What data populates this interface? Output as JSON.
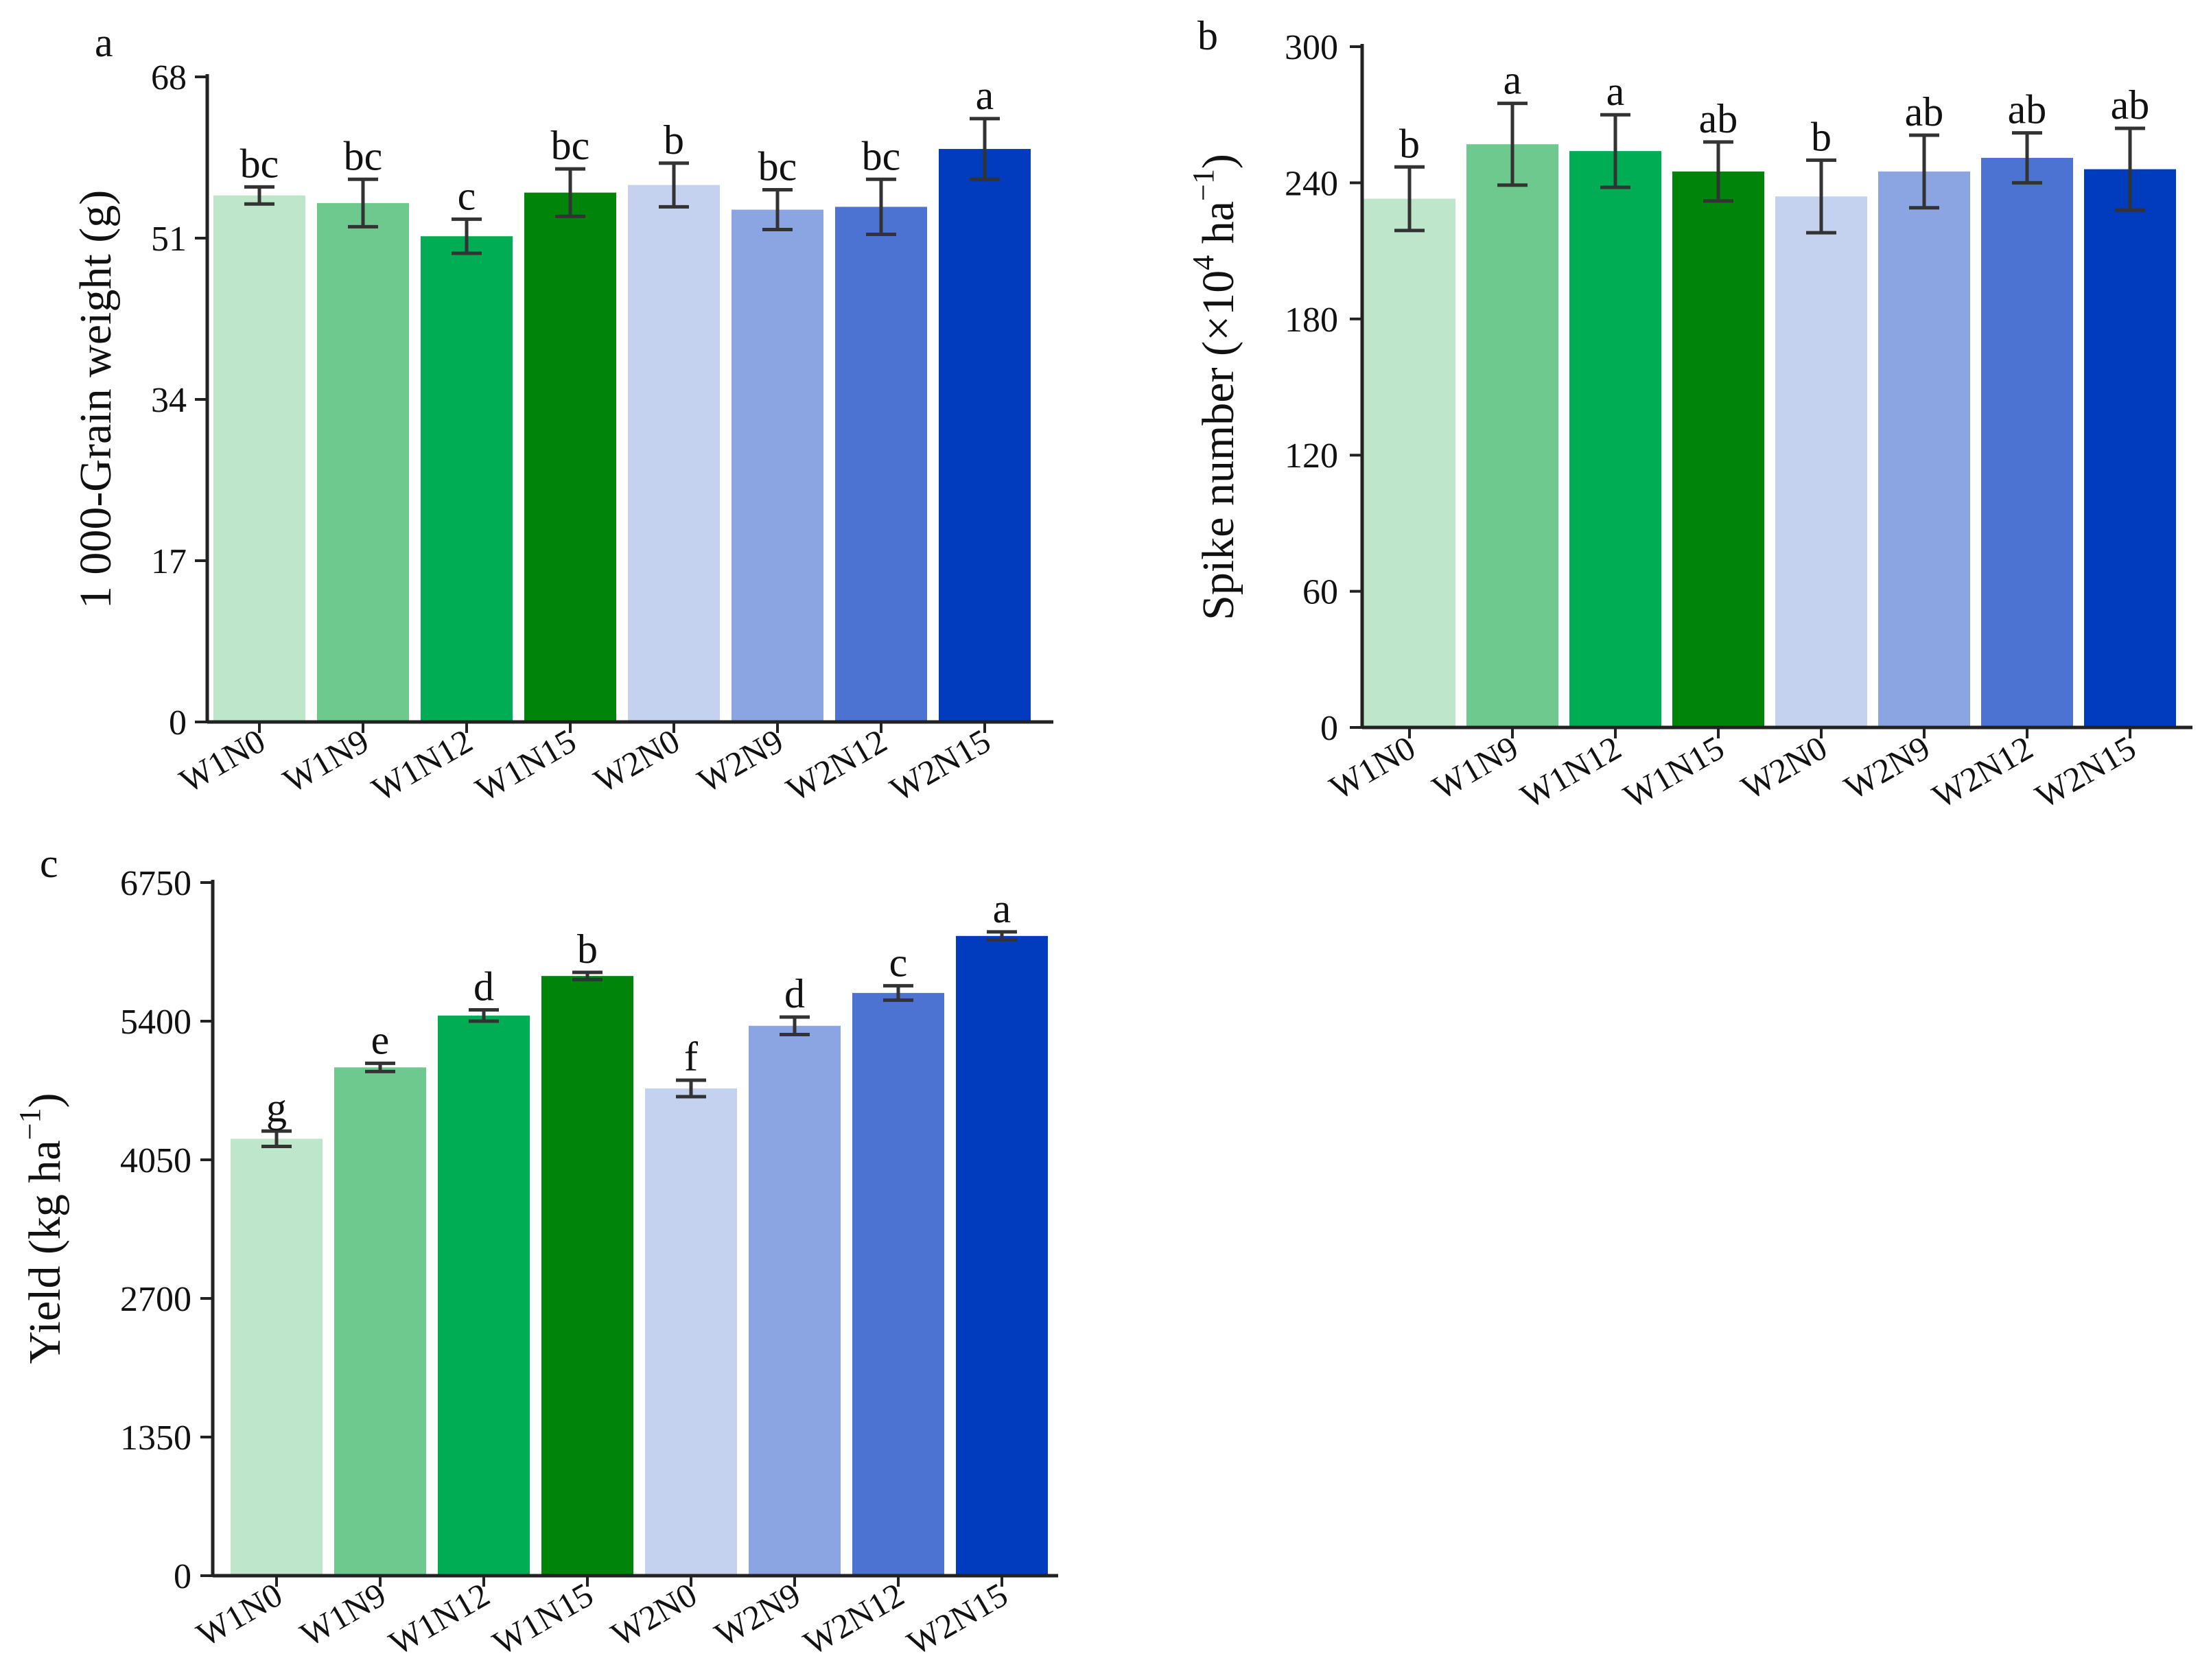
{
  "chart_data": [
    {
      "panel": "a",
      "type": "bar",
      "categories": [
        "W1N0",
        "W1N9",
        "W1N12",
        "W1N15",
        "W2N0",
        "W2N9",
        "W2N12",
        "W2N15"
      ],
      "values": [
        55.5,
        54.7,
        51.2,
        55.8,
        56.6,
        54.0,
        54.3,
        60.4
      ],
      "errors": [
        0.9,
        2.5,
        1.8,
        2.5,
        2.3,
        2.1,
        2.9,
        3.2
      ],
      "significance": [
        "bc",
        "bc",
        "c",
        "bc",
        "b",
        "bc",
        "bc",
        "a"
      ],
      "colors": [
        "#bde6cb",
        "#6dc98d",
        "#00ad54",
        "#00840a",
        "#c4d2f0",
        "#8ba5e2",
        "#4c72d2",
        "#003cbd"
      ],
      "ylabel": "1 000-Grain weight (g)",
      "ylabel_parts": [
        {
          "text": "1 000-Grain weight (g)"
        }
      ],
      "yticks": [
        0,
        17,
        34,
        51,
        68
      ],
      "ylim": [
        0,
        68
      ],
      "xlabel": "",
      "title": ""
    },
    {
      "panel": "b",
      "type": "bar",
      "categories": [
        "W1N0",
        "W1N9",
        "W1N12",
        "W1N15",
        "W2N0",
        "W2N9",
        "W2N12",
        "W2N15"
      ],
      "values": [
        233,
        257,
        254,
        245,
        234,
        245,
        251,
        246
      ],
      "errors": [
        14,
        18,
        16,
        13,
        16,
        16,
        11,
        18
      ],
      "significance": [
        "b",
        "a",
        "a",
        "ab",
        "b",
        "ab",
        "ab",
        "ab"
      ],
      "colors": [
        "#bde6cb",
        "#6dc98d",
        "#00ad54",
        "#00840a",
        "#c4d2f0",
        "#8ba5e2",
        "#4c72d2",
        "#003cbd"
      ],
      "ylabel": "Spike number (×10⁴ ha⁻¹)",
      "ylabel_parts": [
        {
          "text": "Spike number (×10"
        },
        {
          "text": "4",
          "sup": true
        },
        {
          "text": " ha"
        },
        {
          "text": "−1",
          "sup": true
        },
        {
          "text": ")"
        }
      ],
      "yticks": [
        0,
        60,
        120,
        180,
        240,
        300
      ],
      "ylim": [
        0,
        300
      ],
      "xlabel": "",
      "title": ""
    },
    {
      "panel": "c",
      "type": "bar",
      "categories": [
        "W1N0",
        "W1N9",
        "W1N12",
        "W1N15",
        "W2N0",
        "W2N9",
        "W2N12",
        "W2N15"
      ],
      "values": [
        4255,
        4950,
        5455,
        5840,
        4745,
        5355,
        5675,
        6230
      ],
      "errors": [
        75,
        40,
        55,
        35,
        80,
        85,
        70,
        40
      ],
      "significance": [
        "g",
        "e",
        "d",
        "b",
        "f",
        "d",
        "c",
        "a"
      ],
      "colors": [
        "#bde6cb",
        "#6dc98d",
        "#00ad54",
        "#00840a",
        "#c4d2f0",
        "#8ba5e2",
        "#4c72d2",
        "#003cbd"
      ],
      "ylabel": "Yield (kg ha⁻¹)",
      "ylabel_parts": [
        {
          "text": "Yield (kg ha"
        },
        {
          "text": "−1",
          "sup": true
        },
        {
          "text": ")"
        }
      ],
      "yticks": [
        0,
        1350,
        2700,
        4050,
        5400,
        6750
      ],
      "ylim": [
        0,
        6750
      ],
      "xlabel": "",
      "title": ""
    }
  ]
}
